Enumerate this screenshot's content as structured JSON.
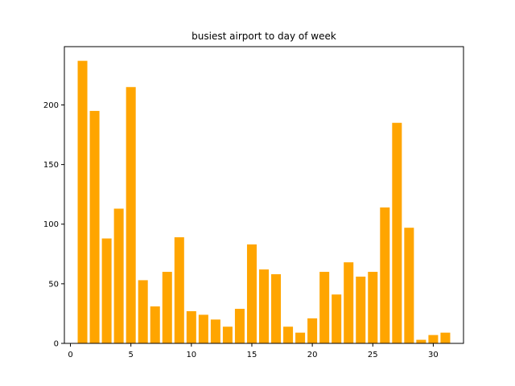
{
  "chart_data": {
    "type": "bar",
    "title": "busiest airport to day of week",
    "xlabel": "",
    "ylabel": "",
    "x": [
      1,
      2,
      3,
      4,
      5,
      6,
      7,
      8,
      9,
      10,
      11,
      12,
      13,
      14,
      15,
      16,
      17,
      18,
      19,
      20,
      21,
      22,
      23,
      24,
      25,
      26,
      27,
      28,
      29,
      30,
      31
    ],
    "values": [
      237,
      195,
      88,
      113,
      215,
      53,
      31,
      60,
      89,
      27,
      24,
      20,
      14,
      29,
      83,
      62,
      58,
      14,
      9,
      21,
      60,
      41,
      68,
      56,
      60,
      114,
      185,
      97,
      3,
      7,
      9
    ],
    "xlim": [
      -0.5,
      32.5
    ],
    "ylim": [
      0,
      248.9
    ],
    "xticks": [
      0,
      5,
      10,
      15,
      20,
      25,
      30
    ],
    "yticks": [
      0,
      50,
      100,
      150,
      200
    ],
    "bar_color": "#ffa500",
    "grid": false,
    "legend": "none"
  }
}
